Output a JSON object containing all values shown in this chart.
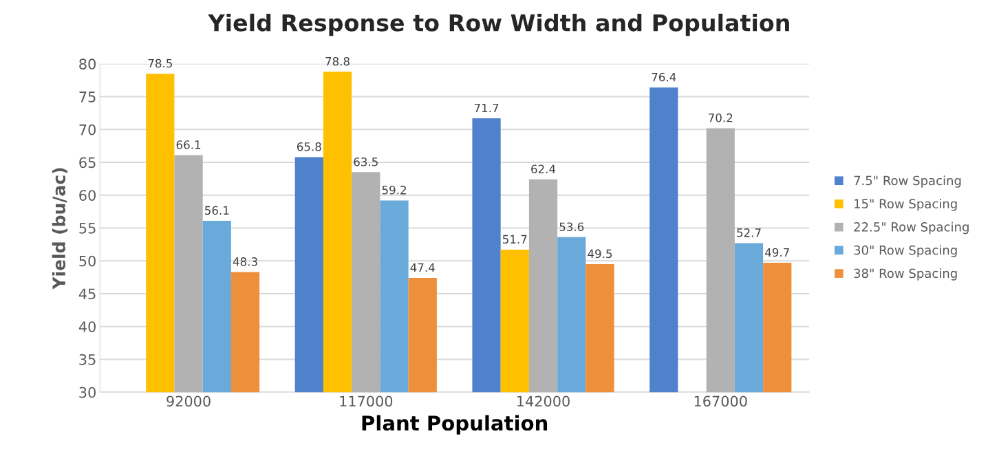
{
  "chart_data": {
    "type": "bar",
    "title": "Yield Response to Row Width and Population",
    "xlabel": "Plant Population",
    "ylabel": "Yield (bu/ac)",
    "categories": [
      "92000",
      "117000",
      "142000",
      "167000"
    ],
    "series": [
      {
        "name": "7.5\" Row Spacing",
        "color": "#4f81cd",
        "values": [
          null,
          65.8,
          71.7,
          76.4
        ]
      },
      {
        "name": "15\" Row Spacing",
        "color": "#ffc000",
        "values": [
          78.5,
          78.8,
          51.7,
          null
        ]
      },
      {
        "name": "22.5\" Row Spacing",
        "color": "#b2b2b2",
        "values": [
          66.1,
          63.5,
          62.4,
          70.2
        ]
      },
      {
        "name": "30\" Row Spacing",
        "color": "#6aaada",
        "values": [
          56.1,
          59.2,
          53.6,
          52.7
        ]
      },
      {
        "name": "38\" Row Spacing",
        "color": "#ee8f3c",
        "values": [
          48.3,
          47.4,
          49.5,
          49.7
        ]
      }
    ],
    "ylim": [
      30,
      80
    ],
    "yticks": [
      30,
      35,
      40,
      45,
      50,
      55,
      60,
      65,
      70,
      75,
      80
    ],
    "grid": "y",
    "legend": "right",
    "data_labels": true
  }
}
